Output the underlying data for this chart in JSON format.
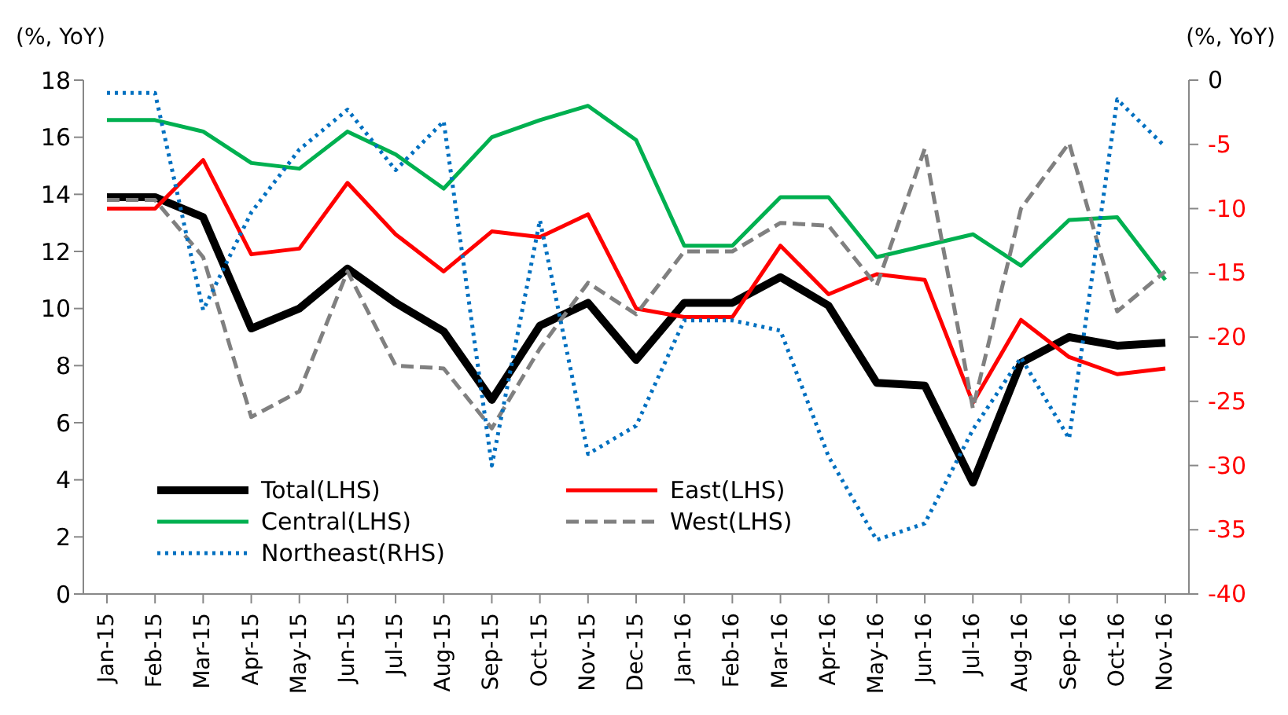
{
  "chart_data": {
    "type": "line",
    "ylabel": "(%, YoY)",
    "y2label": "(%, YoY)",
    "categories": [
      "Jan-15",
      "Feb-15",
      "Mar-15",
      "Apr-15",
      "May-15",
      "Jun-15",
      "Jul-15",
      "Aug-15",
      "Sep-15",
      "Oct-15",
      "Nov-15",
      "Dec-15",
      "Jan-16",
      "Feb-16",
      "Mar-16",
      "Apr-16",
      "May-16",
      "Jun-16",
      "Jul-16",
      "Aug-16",
      "Sep-16",
      "Oct-16",
      "Nov-16"
    ],
    "series": [
      {
        "name": "Total(LHS)",
        "color": "#000000",
        "line_style": "solid",
        "values": [
          13.9,
          13.9,
          13.2,
          9.3,
          10.0,
          11.4,
          10.2,
          9.2,
          6.8,
          9.4,
          10.2,
          8.2,
          10.2,
          10.2,
          11.1,
          10.1,
          7.4,
          7.3,
          3.9,
          8.1,
          9.0,
          8.7,
          8.8
        ]
      },
      {
        "name": "East(LHS)",
        "color": "#ff0000",
        "line_style": "solid",
        "values": [
          13.5,
          13.5,
          15.2,
          11.9,
          12.1,
          14.4,
          12.6,
          11.3,
          12.7,
          12.5,
          13.3,
          10.0,
          9.7,
          9.7,
          12.2,
          10.5,
          11.2,
          11.0,
          6.7,
          9.6,
          8.3,
          7.7,
          7.9
        ]
      },
      {
        "name": "Central(LHS)",
        "color": "#00b050",
        "line_style": "solid",
        "values": [
          16.6,
          16.6,
          16.2,
          15.1,
          14.9,
          16.2,
          15.4,
          14.2,
          16.0,
          16.6,
          17.1,
          15.9,
          12.2,
          12.2,
          13.9,
          13.9,
          11.8,
          12.2,
          12.6,
          11.5,
          13.1,
          13.2,
          11.0
        ]
      },
      {
        "name": "West(LHS)",
        "color": "#808080",
        "line_style": "dashed",
        "values": [
          13.8,
          13.8,
          11.8,
          6.2,
          7.1,
          11.3,
          8.0,
          7.9,
          5.8,
          8.6,
          10.9,
          9.8,
          12.0,
          12.0,
          13.0,
          12.9,
          10.8,
          15.6,
          6.5,
          13.5,
          15.8,
          9.9,
          11.3
        ]
      },
      {
        "name": "Northeast(RHS)",
        "color": "#0070c0",
        "line_style": "dotted",
        "axis": "y2",
        "values": [
          -1.0,
          -1.0,
          -17.9,
          -10.3,
          -5.4,
          -2.3,
          -7.0,
          -3.2,
          -30.0,
          -10.9,
          -29.1,
          -26.9,
          -18.7,
          -18.7,
          -19.5,
          -29.3,
          -35.8,
          -34.5,
          -27.2,
          -21.6,
          -27.9,
          -1.5,
          -5.2
        ]
      }
    ],
    "ylim": [
      0,
      18
    ],
    "yticks": [
      0,
      2,
      4,
      6,
      8,
      10,
      12,
      14,
      16,
      18
    ],
    "y2lim": [
      -40,
      0
    ],
    "y2ticks": [
      -40,
      -35,
      -30,
      -25,
      -20,
      -15,
      -10,
      -5,
      0
    ],
    "legend": "bottom left",
    "marker": "none"
  }
}
